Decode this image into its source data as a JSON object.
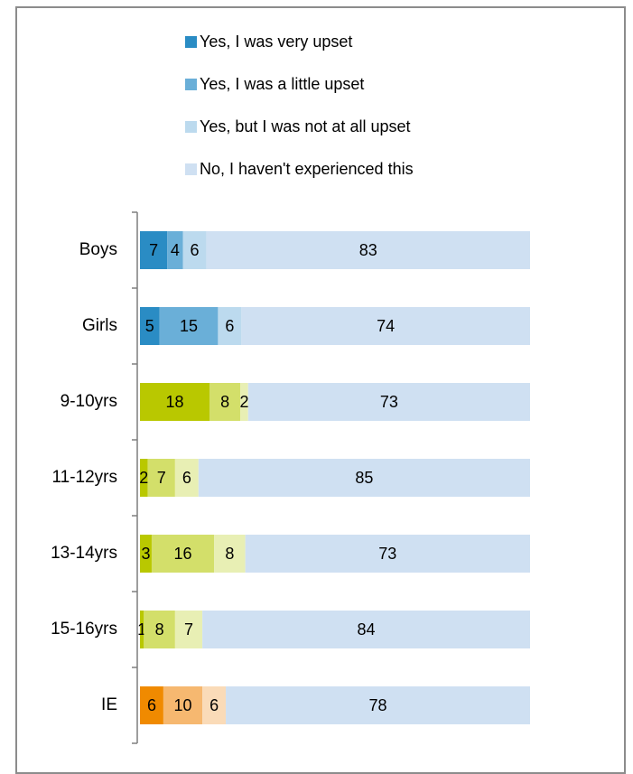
{
  "chart_data": {
    "type": "bar",
    "orientation": "horizontal",
    "stacked": true,
    "categories": [
      "Boys",
      "Girls",
      "9-10yrs",
      "11-12yrs",
      "13-14yrs",
      "15-16yrs",
      "IE"
    ],
    "series": [
      {
        "name": "Yes, I was very upset",
        "values": [
          7,
          5,
          18,
          2,
          3,
          1,
          6
        ]
      },
      {
        "name": "Yes, I was a little upset",
        "values": [
          4,
          15,
          8,
          7,
          16,
          8,
          10
        ]
      },
      {
        "name": "Yes, but I was not at all upset",
        "values": [
          6,
          6,
          2,
          6,
          8,
          7,
          6
        ]
      },
      {
        "name": "No, I haven't experienced this",
        "values": [
          83,
          74,
          73,
          85,
          73,
          84,
          78
        ]
      }
    ],
    "xlim": [
      0,
      100
    ],
    "legend": "top",
    "grid": false,
    "colors": {
      "legend": [
        "#2a8cc4",
        "#6aafd8",
        "#bcdaee",
        "#cfe0f2"
      ],
      "rows": [
        [
          "#2a8cc4",
          "#6aafd8",
          "#bcdaee",
          "#cfe0f2"
        ],
        [
          "#2a8cc4",
          "#6aafd8",
          "#bcdaee",
          "#cfe0f2"
        ],
        [
          "#b9c800",
          "#d3df6a",
          "#e8efb4",
          "#cfe0f2"
        ],
        [
          "#b9c800",
          "#d3df6a",
          "#e8efb4",
          "#cfe0f2"
        ],
        [
          "#b9c800",
          "#d3df6a",
          "#e8efb4",
          "#cfe0f2"
        ],
        [
          "#b9c800",
          "#d3df6a",
          "#e8efb4",
          "#cfe0f2"
        ],
        [
          "#f08a00",
          "#f6b870",
          "#fadbb8",
          "#cfe0f2"
        ]
      ]
    }
  }
}
